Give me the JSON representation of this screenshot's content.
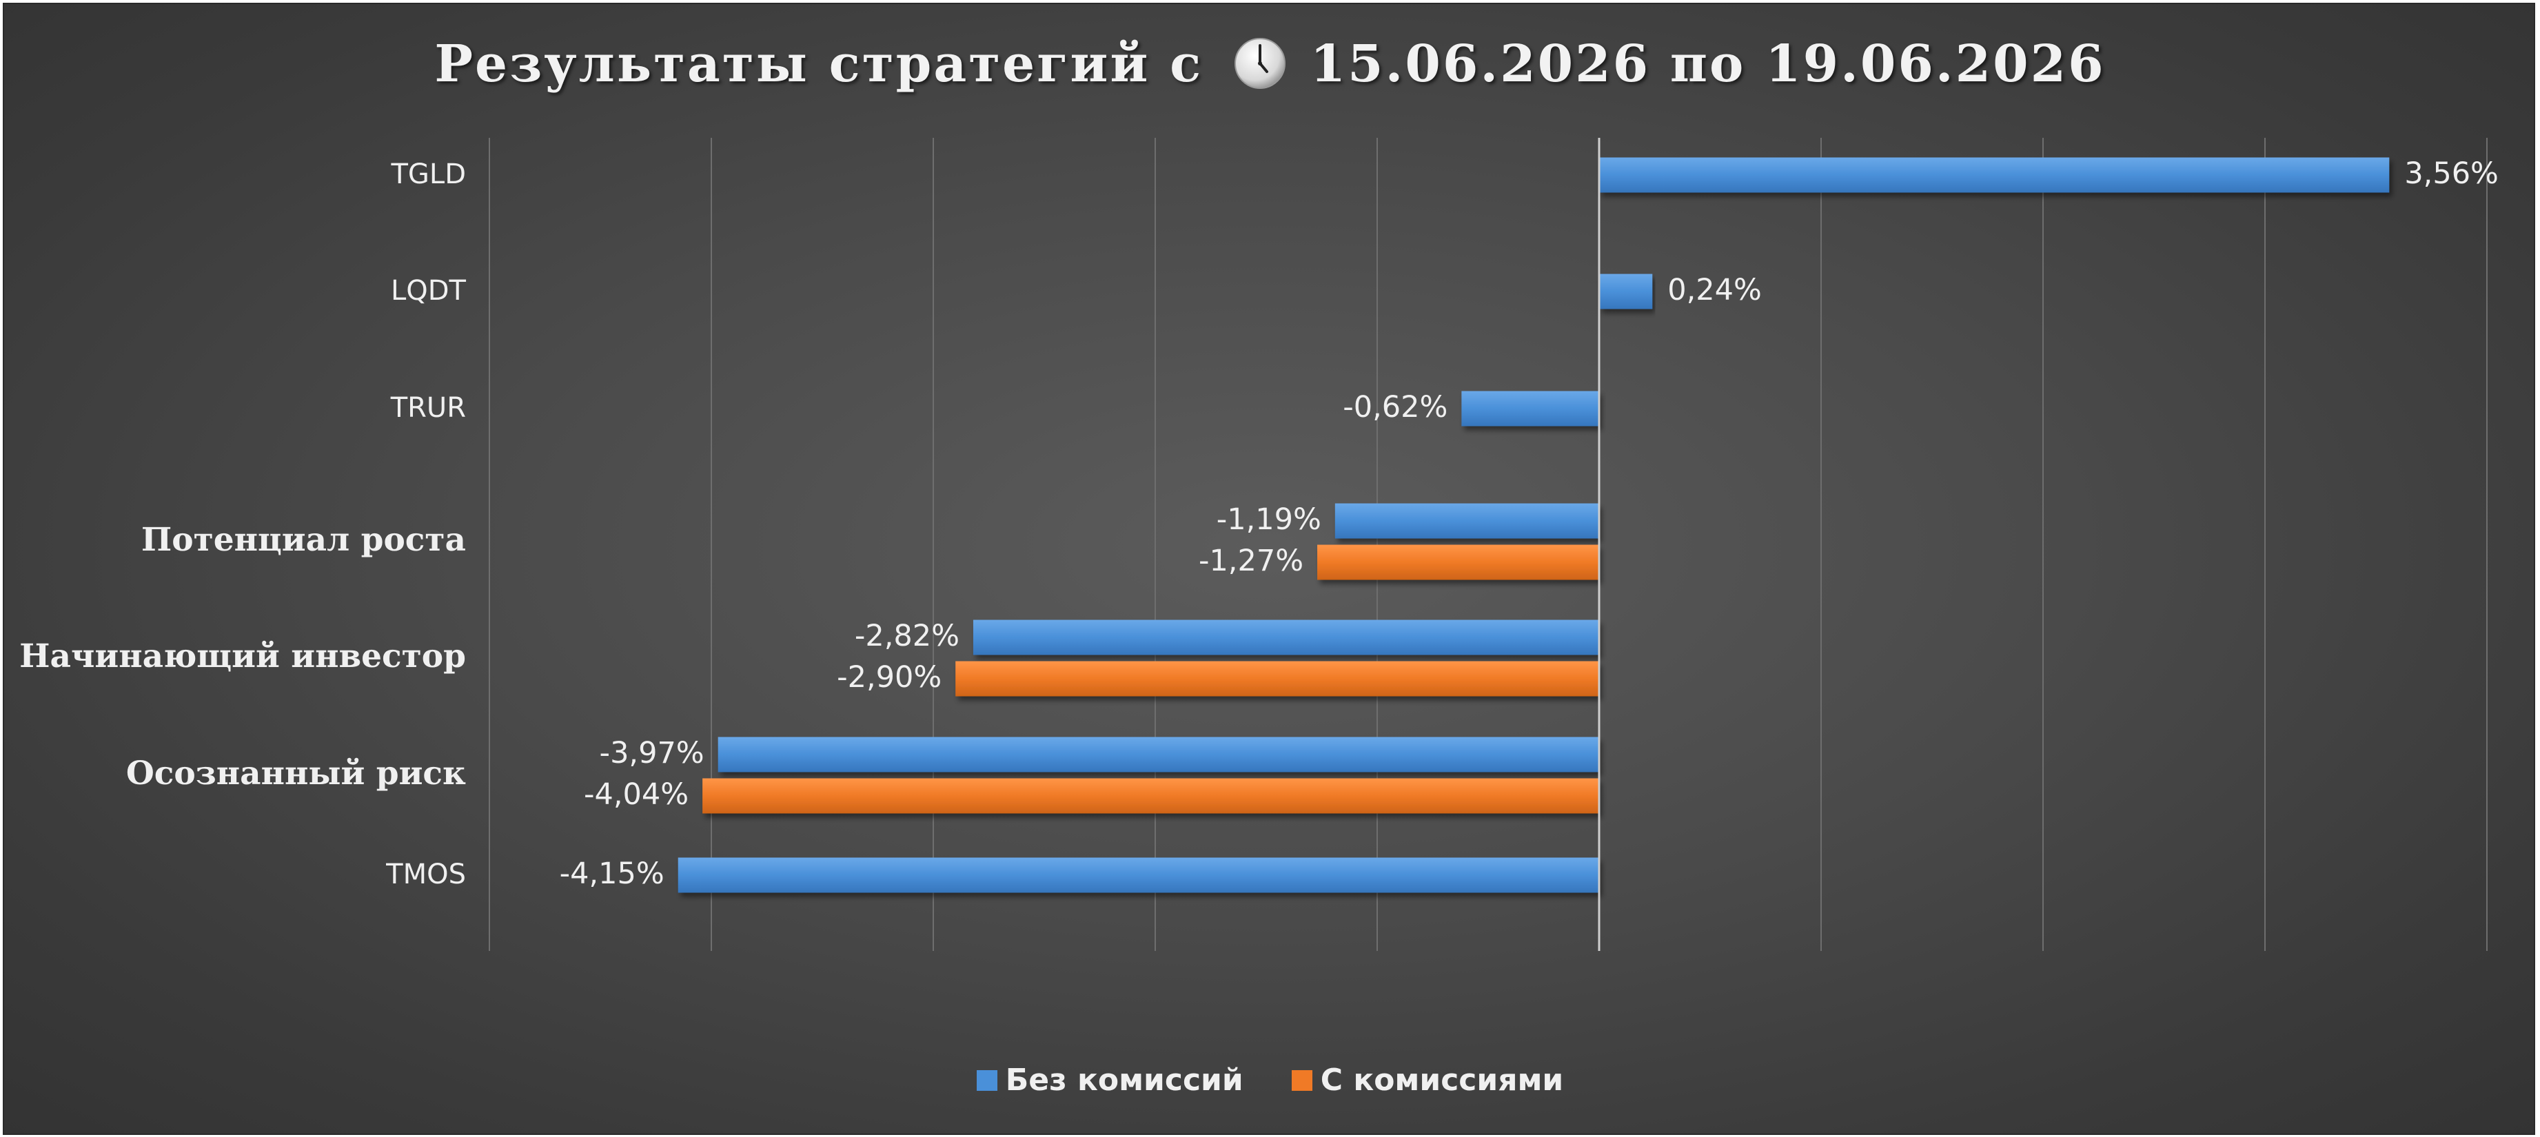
{
  "chart_data": {
    "type": "bar",
    "orientation": "horizontal",
    "title": "Результаты стратегий с",
    "title_dates": "15.06.2026 по 19.06.2026",
    "title_icon": "clock-icon",
    "categories": [
      "TGLD",
      "LQDT",
      "TRUR",
      "Потенциал роста",
      "Начинающий инвестор",
      "Осознанный риск",
      "TMOS"
    ],
    "series": [
      {
        "name": "Без комиссий",
        "color": "#4a90d9",
        "values": [
          3.56,
          0.24,
          -0.62,
          -1.19,
          -2.82,
          -3.97,
          -4.15
        ]
      },
      {
        "name": "С комиссиями",
        "color": "#f07a26",
        "values": [
          null,
          null,
          null,
          -1.27,
          -2.9,
          -4.04,
          null
        ]
      }
    ],
    "value_labels": {
      "Без комиссий": [
        "3,56%",
        "0,24%",
        "-0,62%",
        "-1,19%",
        "-2,82%",
        "-3,97%",
        "-4,15%"
      ],
      "С комиссиями": [
        null,
        null,
        null,
        "-1,27%",
        "-2,90%",
        "-4,04%",
        null
      ]
    },
    "xlim": [
      -5,
      4
    ],
    "grid": true,
    "legend": "bottom-center",
    "background": "#4a4a4a",
    "text_color": "#f0f0f0"
  }
}
